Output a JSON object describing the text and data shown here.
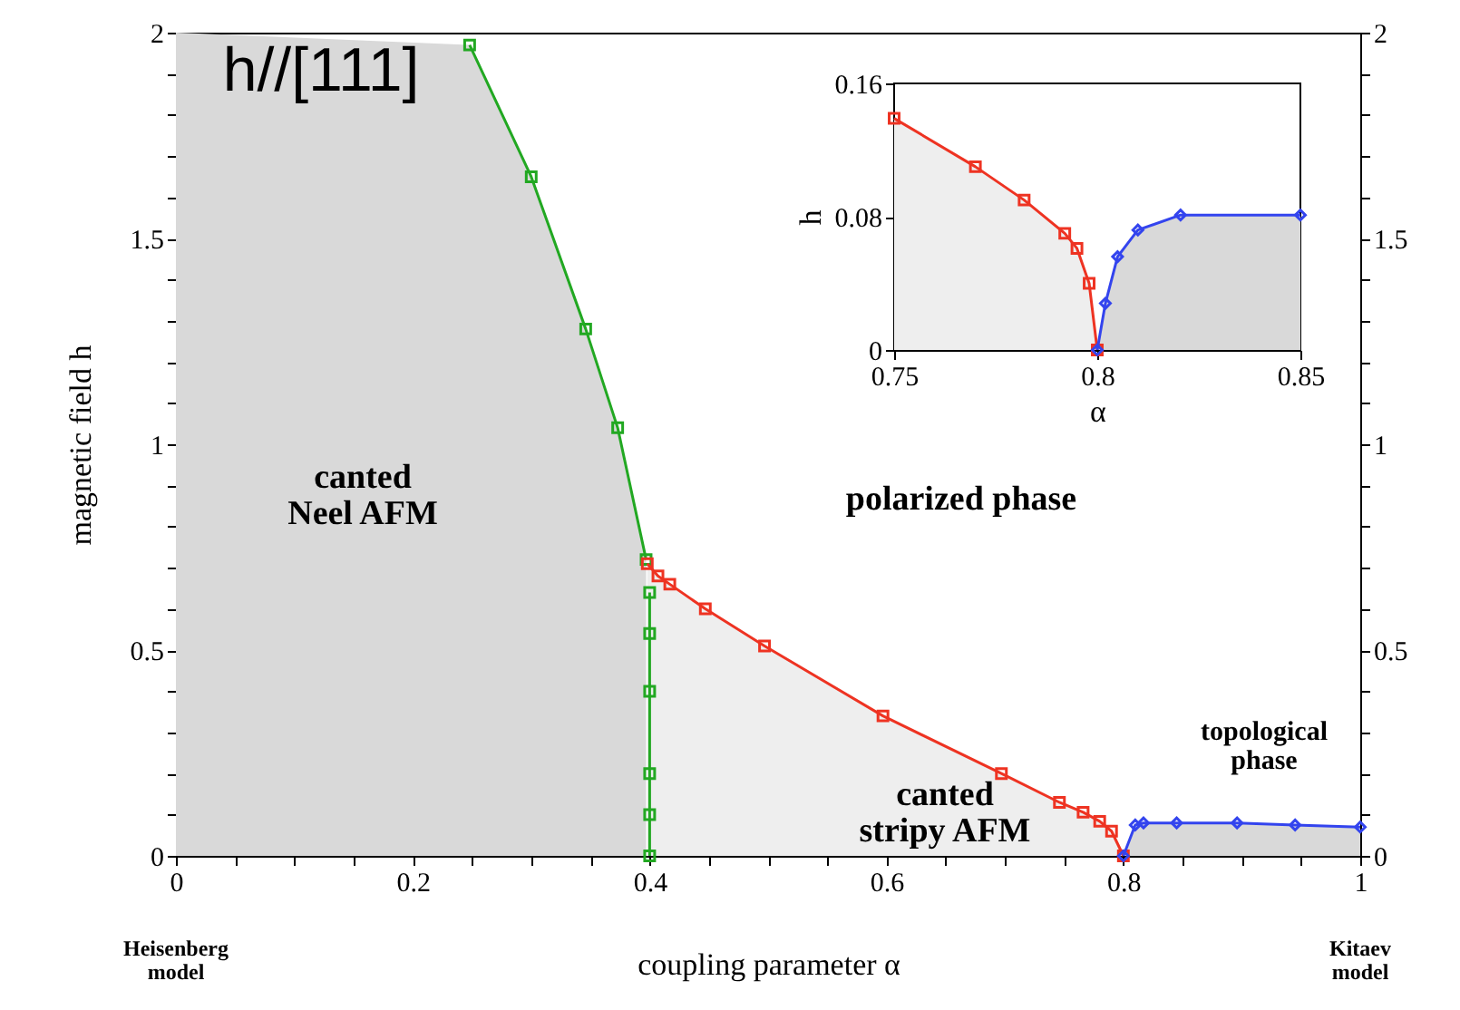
{
  "chart_data": [
    {
      "type": "line",
      "xlabel": "coupling parameter  α",
      "ylabel": "magnetic field  h",
      "xlim": [
        0,
        1
      ],
      "ylim": [
        0,
        2
      ],
      "y2lim": [
        0,
        2
      ],
      "xticks": [
        0,
        {
          "value": 0.05,
          "label": null
        },
        {
          "value": 0.1,
          "label": null
        },
        {
          "value": 0.15,
          "label": null
        },
        0.2,
        {
          "value": 0.25,
          "label": null
        },
        {
          "value": 0.3,
          "label": null
        },
        {
          "value": 0.35,
          "label": null
        },
        0.4,
        {
          "value": 0.45,
          "label": null
        },
        {
          "value": 0.5,
          "label": null
        },
        {
          "value": 0.55,
          "label": null
        },
        0.6,
        {
          "value": 0.65,
          "label": null
        },
        {
          "value": 0.7,
          "label": null
        },
        {
          "value": 0.75,
          "label": null
        },
        0.8,
        {
          "value": 0.85,
          "label": null
        },
        {
          "value": 0.9,
          "label": null
        },
        {
          "value": 0.95,
          "label": null
        },
        1
      ],
      "yticks": [
        0,
        {
          "value": 0.1,
          "label": null
        },
        {
          "value": 0.2,
          "label": null
        },
        {
          "value": 0.3,
          "label": null
        },
        {
          "value": 0.4,
          "label": null
        },
        0.5,
        {
          "value": 0.6,
          "label": null
        },
        {
          "value": 0.7,
          "label": null
        },
        {
          "value": 0.8,
          "label": null
        },
        {
          "value": 0.9,
          "label": null
        },
        1,
        {
          "value": 1.1,
          "label": null
        },
        {
          "value": 1.2,
          "label": null
        },
        {
          "value": 1.3,
          "label": null
        },
        {
          "value": 1.4,
          "label": null
        },
        1.5,
        {
          "value": 1.6,
          "label": null
        },
        {
          "value": 1.7,
          "label": null
        },
        {
          "value": 1.8,
          "label": null
        },
        {
          "value": 1.9,
          "label": null
        },
        2
      ],
      "y2ticks": [
        0,
        {
          "value": 0.1,
          "label": null
        },
        {
          "value": 0.2,
          "label": null
        },
        {
          "value": 0.3,
          "label": null
        },
        {
          "value": 0.4,
          "label": null
        },
        0.5,
        {
          "value": 0.6,
          "label": null
        },
        {
          "value": 0.7,
          "label": null
        },
        {
          "value": 0.8,
          "label": null
        },
        {
          "value": 0.9,
          "label": null
        },
        1,
        {
          "value": 1.1,
          "label": null
        },
        {
          "value": 1.2,
          "label": null
        },
        {
          "value": 1.3,
          "label": null
        },
        {
          "value": 1.4,
          "label": null
        },
        1.5,
        {
          "value": 1.6,
          "label": null
        },
        {
          "value": 1.7,
          "label": null
        },
        {
          "value": 1.8,
          "label": null
        },
        {
          "value": 1.9,
          "label": null
        },
        2
      ],
      "series": [
        {
          "color": "#22a822",
          "marker": "square",
          "x": [
            0.248,
            0.3,
            0.346,
            0.373,
            0.397
          ],
          "values": [
            1.97,
            1.65,
            1.28,
            1.04,
            0.72
          ]
        },
        {
          "color": "#22a822",
          "marker": "square",
          "x": [
            0.4,
            0.4,
            0.4,
            0.4,
            0.4,
            0.4
          ],
          "values": [
            0.64,
            0.54,
            0.4,
            0.2,
            0.1,
            0
          ]
        },
        {
          "color": "#ee3322",
          "marker": "square",
          "x": [
            0.398,
            0.407,
            0.417,
            0.447,
            0.497,
            0.597,
            0.697,
            0.746,
            0.766,
            0.78,
            0.79,
            0.8
          ],
          "values": [
            0.71,
            0.68,
            0.66,
            0.6,
            0.51,
            0.34,
            0.2,
            0.13,
            0.106,
            0.084,
            0.06,
            0
          ]
        },
        {
          "color": "#3344ee",
          "marker": "diamond",
          "x": [
            0.8,
            0.81,
            0.817,
            0.845,
            0.896,
            0.945,
            1
          ],
          "values": [
            0,
            0.075,
            0.08,
            0.08,
            0.08,
            0.075,
            0.07
          ]
        }
      ],
      "annotations": [
        "h//[111]",
        "canted\nNeel AFM",
        "polarized phase",
        "canted\nstripy AFM",
        "topological\nphase",
        "Heisenberg\nmodel",
        "Kitaev\nmodel"
      ]
    },
    {
      "type": "line",
      "xlabel": "α",
      "ylabel": "h",
      "xlim": [
        0.75,
        0.85
      ],
      "ylim": [
        0,
        0.16
      ],
      "xticks": [
        0.75,
        0.8,
        0.85
      ],
      "yticks": [
        0,
        0.08,
        0.16
      ],
      "series": [
        {
          "color": "#ee3322",
          "marker": "square",
          "x": [
            0.75,
            0.77,
            0.782,
            0.792,
            0.795,
            0.798,
            0.8
          ],
          "values": [
            0.139,
            0.11,
            0.09,
            0.07,
            0.061,
            0.04,
            0
          ]
        },
        {
          "color": "#3344ee",
          "marker": "diamond",
          "x": [
            0.8,
            0.802,
            0.805,
            0.81,
            0.8205,
            0.85
          ],
          "values": [
            0,
            0.028,
            0.056,
            0.072,
            0.081,
            0.081
          ]
        }
      ]
    }
  ]
}
